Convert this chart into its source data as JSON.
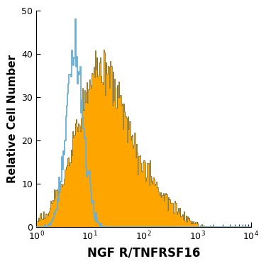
{
  "title": "",
  "xlabel": "NGF R/TNFRSF16",
  "ylabel": "Relative Cell Number",
  "xlim_log": [
    1,
    10000
  ],
  "ylim": [
    0,
    50
  ],
  "yticks": [
    0,
    10,
    20,
    30,
    40,
    50
  ],
  "filled_color": "#FFA500",
  "open_color": "#6aafd6",
  "filled_edge_color": "#333300",
  "background_color": "#ffffff",
  "seed": 99,
  "n_bins": 256,
  "filled_peak_log": 1.18,
  "filled_peak_y": 41,
  "filled_sigma": 1.05,
  "open_peak_log": 0.72,
  "open_peak_y": 48,
  "open_sigma": 0.38
}
